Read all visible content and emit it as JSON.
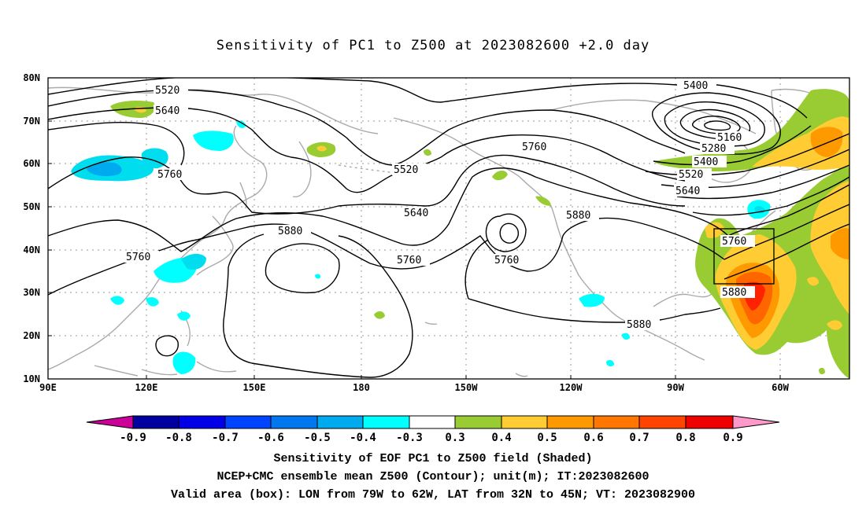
{
  "title": "Sensitivity of PC1 to Z500 at 2023082600 +2.0 day",
  "map": {
    "lon_labels": [
      "90E",
      "120E",
      "150E",
      "180",
      "150W",
      "120W",
      "90W",
      "60W"
    ],
    "lat_labels": [
      "80N",
      "70N",
      "60N",
      "50N",
      "40N",
      "30N",
      "20N",
      "10N"
    ],
    "contour_labels": [
      {
        "id": "c5520a",
        "text": "5520"
      },
      {
        "id": "c5640a",
        "text": "5640"
      },
      {
        "id": "c5760a",
        "text": "5760"
      },
      {
        "id": "c5760b",
        "text": "5760"
      },
      {
        "id": "c5880a",
        "text": "5880"
      },
      {
        "id": "c5520b",
        "text": "5520"
      },
      {
        "id": "c5640b",
        "text": "5640"
      },
      {
        "id": "c5760c",
        "text": "5760"
      },
      {
        "id": "c5760d",
        "text": "5760"
      },
      {
        "id": "c5760e",
        "text": "5760"
      },
      {
        "id": "c5880b",
        "text": "5880"
      },
      {
        "id": "c5400a",
        "text": "5400"
      },
      {
        "id": "c5160",
        "text": "5160"
      },
      {
        "id": "c5280",
        "text": "5280"
      },
      {
        "id": "c5400b",
        "text": "5400"
      },
      {
        "id": "c5520c",
        "text": "5520"
      },
      {
        "id": "c5640c",
        "text": "5640"
      },
      {
        "id": "c5760f",
        "text": "5760"
      },
      {
        "id": "c5880c",
        "text": "5880"
      },
      {
        "id": "c5880d",
        "text": "5880"
      }
    ],
    "valid_box": {
      "lon_min": "79W",
      "lon_max": "62W",
      "lat_min": "32N",
      "lat_max": "45N"
    }
  },
  "colorbar": {
    "labels": [
      "-0.9",
      "-0.8",
      "-0.7",
      "-0.6",
      "-0.5",
      "-0.4",
      "-0.3",
      "0.3",
      "0.4",
      "0.5",
      "0.6",
      "0.7",
      "0.8",
      "0.9"
    ],
    "colors": [
      "#0000a0",
      "#0000e6",
      "#0044ff",
      "#0077ee",
      "#00aaee",
      "#00ddee",
      "#00ffff",
      "#ffffff",
      "#99cc33",
      "#ffcc33",
      "#ff9900",
      "#ff6600",
      "#ff2200",
      "#ee0000"
    ],
    "low_color": "#cc0099",
    "high_color": "#ff99cc"
  },
  "captions": {
    "line1": "Sensitivity of EOF PC1 to Z500 field (Shaded)",
    "line2": "NCEP+CMC ensemble mean Z500 (Contour); unit(m); IT:2023082600",
    "line3": "Valid area (box): LON from 79W to 62W, LAT from 32N to 45N; VT: 2023082900"
  }
}
